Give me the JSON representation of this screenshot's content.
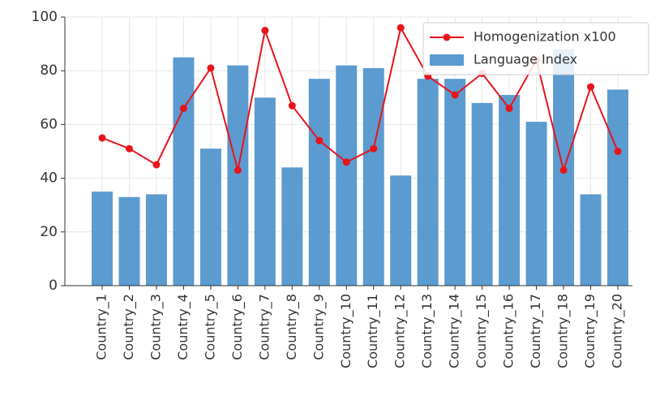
{
  "chart_data": {
    "type": "bar_line",
    "categories": [
      "Country_1",
      "Country_2",
      "Country_3",
      "Country_4",
      "Country_5",
      "Country_6",
      "Country_7",
      "Country_8",
      "Country_9",
      "Country_10",
      "Country_11",
      "Country_12",
      "Country_13",
      "Country_14",
      "Country_15",
      "Country_16",
      "Country_17",
      "Country_18",
      "Country_19",
      "Country_20"
    ],
    "series": [
      {
        "name": "Homogenization x100",
        "type": "line",
        "color": "#e8141c",
        "values": [
          55,
          51,
          45,
          66,
          81,
          43,
          95,
          67,
          54,
          46,
          51,
          96,
          78,
          71,
          79,
          66,
          84,
          43,
          74,
          50
        ]
      },
      {
        "name": "Language Index",
        "type": "bar",
        "color": "#5b9bd0",
        "values": [
          35,
          33,
          34,
          85,
          51,
          82,
          70,
          44,
          77,
          82,
          81,
          41,
          77,
          77,
          68,
          71,
          61,
          88,
          34,
          73
        ]
      }
    ],
    "ylim": [
      0,
      100
    ],
    "yticks": [
      0,
      20,
      40,
      60,
      80,
      100
    ],
    "grid": true,
    "legend": "upper right"
  }
}
